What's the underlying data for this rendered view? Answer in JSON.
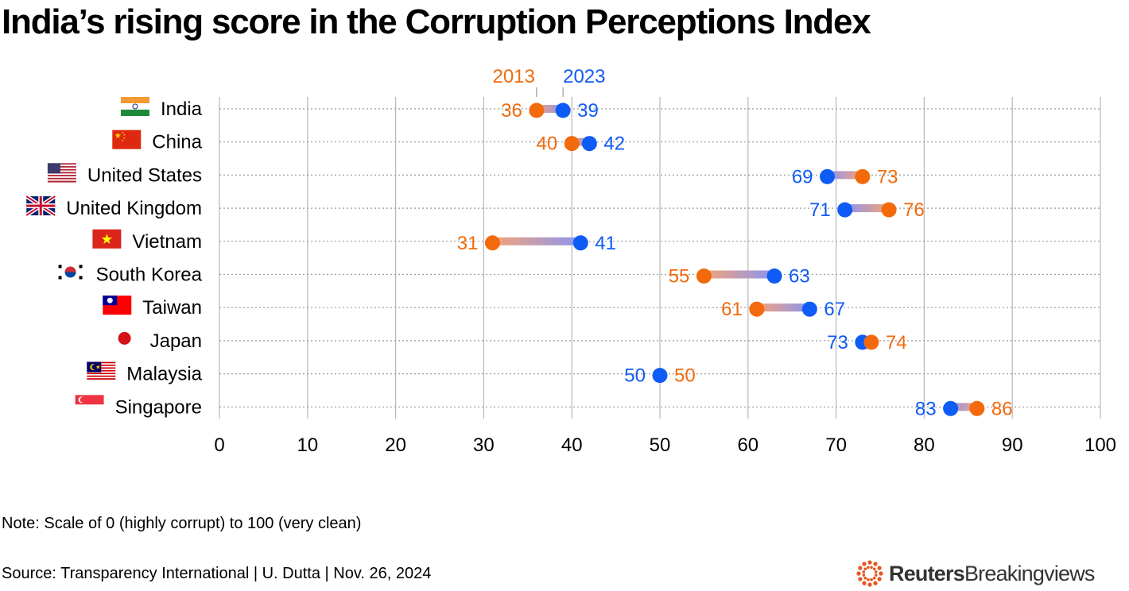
{
  "title": "India’s rising score in the Corruption Perceptions Index",
  "note": "Note: Scale of 0 (highly corrupt) to 100 (very clean)",
  "source": "Source: Transparency International | U. Dutta | Nov. 26, 2024",
  "brand": {
    "name_bold": "Reuters",
    "name_light": "Breakingviews"
  },
  "colors": {
    "y2013": "#f26a0c",
    "y2023": "#0f5bf5",
    "grid": "#b8b8b8",
    "brand_accent": "#e8541e"
  },
  "chart_data": {
    "type": "dumbbell",
    "xlim": [
      0,
      100
    ],
    "x_ticks": [
      0,
      10,
      20,
      30,
      40,
      50,
      60,
      70,
      80,
      90,
      100
    ],
    "series_names": [
      "2013",
      "2023"
    ],
    "countries": [
      {
        "name": "India",
        "flag": "india-flag-icon",
        "v2013": 36,
        "v2023": 39
      },
      {
        "name": "China",
        "flag": "china-flag-icon",
        "v2013": 40,
        "v2023": 42
      },
      {
        "name": "United States",
        "flag": "usa-flag-icon",
        "v2013": 73,
        "v2023": 69
      },
      {
        "name": "United Kingdom",
        "flag": "uk-flag-icon",
        "v2013": 76,
        "v2023": 71
      },
      {
        "name": "Vietnam",
        "flag": "vietnam-flag-icon",
        "v2013": 31,
        "v2023": 41
      },
      {
        "name": "South Korea",
        "flag": "south-korea-flag-icon",
        "v2013": 55,
        "v2023": 63
      },
      {
        "name": "Taiwan",
        "flag": "taiwan-flag-icon",
        "v2013": 61,
        "v2023": 67
      },
      {
        "name": "Japan",
        "flag": "japan-flag-icon",
        "v2013": 74,
        "v2023": 73
      },
      {
        "name": "Malaysia",
        "flag": "malaysia-flag-icon",
        "v2013": 50,
        "v2023": 50
      },
      {
        "name": "Singapore",
        "flag": "singapore-flag-icon",
        "v2013": 86,
        "v2023": 83
      }
    ]
  }
}
